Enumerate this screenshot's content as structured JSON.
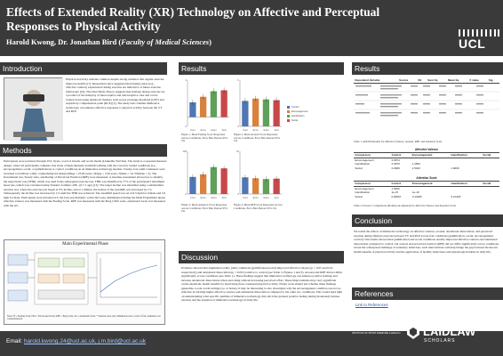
{
  "poster": {
    "title": "Effects of Extended Reality (XR) Technology on Affective and Perceptual Responses to Physical Activity",
    "authors_main": "Harold Kwong, Dr. Jonathan Bird (",
    "authors_dept": "Faculty of Medical Sciences",
    "authors_end": ")",
    "logo_ucl": "UCL"
  },
  "sections": {
    "introduction": "Introduction",
    "methods": "Methods",
    "results1": "Results",
    "results2": "Results",
    "discussion": "Discussion",
    "conclusion": "Conclusion",
    "references": "References"
  },
  "intro": {
    "text": "Physical inactivity remains common despite strong evidence that regular exercise improves health [1?]. Researchers have suggested that feeling states (e.g., affective valence) experienced during exercise are indicative of future exercise behaviours [16]. The Dual Mode Theory suggests that feelings during exercise are a product of the interplay of interoceptive and exteroceptive cues and can be broken down using metabolic markers such as gas exchange threshold (GET) and respiratory compensation point (RCP) [5]. The study tests whether immersive technology can enhance affective responses to physical activity between the VT and RCP"
  },
  "methods": {
    "text": "Participants were recruited through UCL flyers, word of mouth, and social media (LinkedIn, WeChat). The study is a repeated-measure design, where all participants complete four trials of high-intensity treadmill walking with the correctly loaded conditions (i.e., encouragement, social, or gamification) or control condition) on an immersive technology headset. Twenty-four adult volunteers were recruited to facilitate a fully counterbalanced design (Mage = 25.82 years, SDage = 3.59 years, Nmale = 19, Nfemale = 5). The Incremental test, Steady state, and Rating of Perceived Exertion (RPE) were measured. A baseline assessment allowed us to identify the target heart rate (THR), which was used in the subsequent exercise test. THR was identified as 77% of the participant's maximum heart rate, which was calculated using Tanaka's formula: 208 - (0.7 x age) [13]. The target incline was identified using a submaximal exercise test, where the exercise test began at 0% incline, and at 1 minute, the incline of the treadmill was increased by 1%. Subsequently, the incline was increased by 1% until the THR was achieved. The treadmill speed was set at 6.5 mph for female and 5.0 mph for male. Participants were introduced to the four psychometric scales that were administered during the Main Experiment phase: affective valence was measured with the Feeling Scale, RPE was measured with the Borg CR10 scale, attentional focus was measured with the AS.",
    "diagram_title": "Main Experimental Phase",
    "diagram_note": "Note: FS = Feeling Scale; FAS = Felt Arousal Scale; RPE = Borg Scale; AS = Attentional Scale. * Sessions were only administered once; order of four conditions was counterbalanced."
  },
  "results1": {
    "fig1_caption": "Figure 1. Mean Feeling Score Responses Across Conditions, Error Bars Denote 95% CIs",
    "fig2_caption": "Figure 2. Mean Arousal Score Responses Across Conditions, Error Bars Denote 95% CIs",
    "fig3_caption": "Figure 3. Mean Attention Score Responses Across Conditions, Error Bars Denote 95% CIs",
    "fig4_caption": "Figure 4. Mean RPE Score Responses Across Conditions, Error Bars Denote 95% CIs",
    "legend": [
      "Control",
      "Encouragement",
      "Gamification",
      "Social"
    ]
  },
  "results2": {
    "table_caption": "Table 1. ANOVA Results for Affective Valence, Arousal, RPE, and Attention Scale",
    "table_cols": [
      "Dependent Variable",
      "Source",
      "SS",
      "Sum Sq",
      "Mean Sq",
      "F value",
      "Sig."
    ],
    "table2_title": "Affective Valence",
    "table2_cols": [
      "Comparison",
      "Control",
      "Encouragement",
      "Gamification",
      "Social"
    ],
    "table2_rows": [
      [
        "Encouragement",
        "0.0574",
        "",
        "",
        ""
      ],
      [
        "Gamification",
        "0.0575",
        "1.4654",
        "",
        ""
      ],
      [
        "Social",
        "0.0009",
        "1.5162",
        "1.0000",
        ""
      ]
    ],
    "table3_title": "Attention Scale",
    "table3_rows": [
      [
        "Encouragement",
        "1.0000",
        "",
        "",
        ""
      ],
      [
        "Gamification",
        "1e-07",
        "1e-10",
        "",
        ""
      ],
      [
        "Social",
        "0.00007",
        "0.10325",
        "0.10423",
        ""
      ]
    ],
    "table3_caption": "Table 2. Post-hoc Comparisons (Bonferroni-adjusted) for Affective Valence and Attention Scale"
  },
  "discussion": {
    "text": "Evidence showed that augmented reality (AR) conditions (gamification/social) improved affective valence (p < 0.05 and 0.01, respectively) and attentional dissociation (p < 0.001) relative to control (see Table 3, Figures 1 and 3). Arousal and RPE did not differ significantly across conditions (see Table 1). These findings suggest that immersive technology can enhance positive feelings and increase attentional dissociation when exercising without increasing perceived effort. These improvements may carry significant cardio-metabolic health benefits by motivating more consistent physical activity. Future work should test whether these findings generalize to real-world settings (i.e. at home). It may be interesting to also investigate why the encouragement condition was not as effective in eliciting higher affective valence and attentional dissociation compared to the other two conditions. This would shed light on understanding what specific qualities of immersive technology may elicit the greatest positive feeling during moderately intense exercise and the adoption of immersive technology in daily life."
  },
  "conclusion": {
    "text": "We tested the effects of immersive technology on affective valence, arousal, attentional dissociation, and perceived exertion during lifestyle exercise between VT and RCP across four conditions (gamification, social, encouragement, control). Our results showed that gamification and social conditions notably improved affective valence and attentional dissociation compared to control, but arousal and perceived exertion (RPE) did not differ significantly across conditions. Given the widespread challenge of sedentary behaviour, such interventions will help bridge the gap between the known health benefits of physical activity and the application of healthy behaviours and physiological habits in daily life."
  },
  "references": {
    "link": "Link to References"
  },
  "footer": {
    "email_label": "Email: ",
    "email_value": "harold.kwong.24@ucl.ac.uk, j.m.bird@ucl.ac.uk",
    "logo_iseh_big": "ISEH",
    "logo_iseh_small": "INSTITUTE OF SPORT EXERCISE & HEALTH",
    "logo_laidlaw_big": "LAIDLAW",
    "logo_laidlaw_small": "SCHOLARS"
  },
  "chart_data": [
    {
      "type": "bar",
      "title": "Figure 1. Mean Feeling Score Responses Across Conditions, Error Bars Denote 95% CIs",
      "categories": [
        "Control",
        "Encouragement",
        "Gamification",
        "Social"
      ],
      "values": [
        1.6,
        2.2,
        2.8,
        2.9
      ],
      "ylim": [
        -1,
        4
      ]
    },
    {
      "type": "bar",
      "title": "Figure 2. Mean Arousal Score Responses Across Conditions, Error Bars Denote 95% CIs",
      "categories": [
        "Control",
        "Encouragement",
        "Gamification",
        "Social"
      ],
      "values": [
        3.3,
        3.6,
        3.5,
        3.4
      ],
      "ylim": [
        0,
        6
      ]
    },
    {
      "type": "bar",
      "title": "Figure 3. Mean Attention Score Responses Across Conditions, Error Bars Denote 95% CIs",
      "categories": [
        "Control",
        "Encouragement",
        "Gamification",
        "Social"
      ],
      "values": [
        40,
        46,
        63,
        60
      ],
      "ylim": [
        0,
        100
      ]
    },
    {
      "type": "bar",
      "title": "Figure 4. Mean RPE Score Responses Across Conditions, Error Bars Denote 95% CIs",
      "categories": [
        "Control",
        "Encouragement",
        "Gamification",
        "Social"
      ],
      "values": [
        3.9,
        3.7,
        3.5,
        3.6
      ],
      "ylim": [
        0,
        10
      ]
    }
  ]
}
